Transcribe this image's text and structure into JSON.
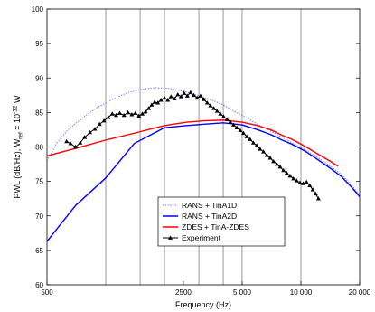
{
  "chart_data": {
    "type": "line",
    "xlabel": "Frequency (Hz)",
    "ylabel_parts": {
      "base": "PWL (dB/Hz), W",
      "sub": "ref",
      "mid": " = 10",
      "sup": "-12",
      "end": " W"
    },
    "x_scale": "log",
    "xlim": [
      500,
      20000
    ],
    "ylim": [
      60,
      100
    ],
    "grid": "vertical lines only",
    "y_ticks": [
      {
        "value": 60,
        "label": "60"
      },
      {
        "value": 65,
        "label": "65"
      },
      {
        "value": 70,
        "label": "70"
      },
      {
        "value": 75,
        "label": "75"
      },
      {
        "value": 80,
        "label": "80"
      },
      {
        "value": 85,
        "label": "85"
      },
      {
        "value": 90,
        "label": "90"
      },
      {
        "value": 95,
        "label": "95"
      },
      {
        "value": 100,
        "label": "100"
      }
    ],
    "x_ticks": [
      {
        "value": 500,
        "label": "500"
      },
      {
        "value": 2500,
        "label": "2500"
      },
      {
        "value": 5000,
        "label": "5 000"
      },
      {
        "value": 10000,
        "label": "10 000"
      },
      {
        "value": 20000,
        "label": "20 000"
      }
    ],
    "x_gridlines": [
      1000,
      1500,
      2000,
      3000,
      4000,
      5000,
      10000
    ],
    "legend_position": "bottom-center",
    "series": [
      {
        "name": "RANS + TinA1D",
        "color": "#6464ff",
        "style": "dotted",
        "points": [
          [
            500,
            78.0
          ],
          [
            560,
            80.5
          ],
          [
            640,
            82.5
          ],
          [
            760,
            84.2
          ],
          [
            900,
            85.7
          ],
          [
            1100,
            87.0
          ],
          [
            1300,
            87.9
          ],
          [
            1550,
            88.4
          ],
          [
            1800,
            88.6
          ],
          [
            2100,
            88.5
          ],
          [
            2500,
            88.1
          ],
          [
            3000,
            87.4
          ],
          [
            3500,
            86.8
          ],
          [
            4000,
            86.1
          ],
          [
            4600,
            85.1
          ],
          [
            5200,
            84.3
          ],
          [
            6000,
            83.3
          ],
          [
            7000,
            82.3
          ],
          [
            8000,
            81.4
          ],
          [
            9000,
            80.6
          ],
          [
            10500,
            79.6
          ],
          [
            12000,
            78.6
          ],
          [
            14000,
            77.3
          ],
          [
            16000,
            76.1
          ],
          [
            18000,
            74.6
          ],
          [
            20000,
            73.0
          ]
        ]
      },
      {
        "name": "RANS + TinA2D",
        "color": "#0000ff",
        "style": "solid",
        "points": [
          [
            500,
            66.3
          ],
          [
            700,
            71.5
          ],
          [
            1000,
            75.5
          ],
          [
            1400,
            80.5
          ],
          [
            2000,
            82.8
          ],
          [
            2600,
            83.1
          ],
          [
            3200,
            83.3
          ],
          [
            4000,
            83.5
          ],
          [
            5000,
            83.2
          ],
          [
            6000,
            82.5
          ],
          [
            7000,
            81.8
          ],
          [
            8000,
            81.0
          ],
          [
            9000,
            80.4
          ],
          [
            10500,
            79.4
          ],
          [
            12000,
            78.3
          ],
          [
            14000,
            77.0
          ],
          [
            16000,
            75.8
          ],
          [
            18000,
            74.3
          ],
          [
            20000,
            72.8
          ]
        ]
      },
      {
        "name": "ZDES + TinA-ZDES",
        "color": "#ff0000",
        "style": "solid",
        "points": [
          [
            500,
            78.7
          ],
          [
            700,
            79.8
          ],
          [
            1000,
            81.0
          ],
          [
            1400,
            82.0
          ],
          [
            2000,
            83.1
          ],
          [
            2600,
            83.6
          ],
          [
            3200,
            83.8
          ],
          [
            4000,
            83.9
          ],
          [
            5000,
            83.6
          ],
          [
            6000,
            83.1
          ],
          [
            7000,
            82.5
          ],
          [
            8000,
            81.7
          ],
          [
            9000,
            81.1
          ],
          [
            10500,
            80.1
          ],
          [
            12000,
            79.1
          ],
          [
            14000,
            78.0
          ],
          [
            15500,
            77.2
          ]
        ]
      },
      {
        "name": "Experiment",
        "color": "#000000",
        "style": "solid-triangles",
        "points": [
          [
            630,
            80.8
          ],
          [
            660,
            80.5
          ],
          [
            700,
            80.0
          ],
          [
            740,
            80.6
          ],
          [
            780,
            81.4
          ],
          [
            830,
            82.1
          ],
          [
            880,
            82.6
          ],
          [
            930,
            83.3
          ],
          [
            980,
            83.8
          ],
          [
            1030,
            84.3
          ],
          [
            1080,
            84.8
          ],
          [
            1130,
            84.6
          ],
          [
            1180,
            84.9
          ],
          [
            1240,
            84.6
          ],
          [
            1300,
            85.0
          ],
          [
            1360,
            84.7
          ],
          [
            1420,
            84.9
          ],
          [
            1480,
            84.5
          ],
          [
            1540,
            84.8
          ],
          [
            1600,
            85.1
          ],
          [
            1660,
            85.6
          ],
          [
            1720,
            86.1
          ],
          [
            1780,
            86.5
          ],
          [
            1850,
            86.4
          ],
          [
            1920,
            86.8
          ],
          [
            2000,
            87.1
          ],
          [
            2080,
            86.8
          ],
          [
            2160,
            87.3
          ],
          [
            2250,
            87.0
          ],
          [
            2340,
            87.6
          ],
          [
            2430,
            87.3
          ],
          [
            2520,
            87.8
          ],
          [
            2620,
            87.4
          ],
          [
            2720,
            87.9
          ],
          [
            2830,
            87.5
          ],
          [
            2940,
            87.1
          ],
          [
            3060,
            87.4
          ],
          [
            3180,
            86.9
          ],
          [
            3310,
            86.4
          ],
          [
            3440,
            86.0
          ],
          [
            3580,
            85.6
          ],
          [
            3720,
            85.2
          ],
          [
            3870,
            84.8
          ],
          [
            4020,
            84.4
          ],
          [
            4180,
            84.0
          ],
          [
            4350,
            83.6
          ],
          [
            4520,
            83.2
          ],
          [
            4700,
            82.8
          ],
          [
            4890,
            82.4
          ],
          [
            5080,
            82.0
          ],
          [
            5280,
            81.5
          ],
          [
            5490,
            81.1
          ],
          [
            5710,
            80.6
          ],
          [
            5940,
            80.2
          ],
          [
            6180,
            79.7
          ],
          [
            6430,
            79.3
          ],
          [
            6690,
            78.8
          ],
          [
            6960,
            78.4
          ],
          [
            7240,
            77.9
          ],
          [
            7530,
            77.5
          ],
          [
            7830,
            77.1
          ],
          [
            8140,
            76.6
          ],
          [
            8460,
            76.2
          ],
          [
            8800,
            75.8
          ],
          [
            9150,
            75.4
          ],
          [
            9510,
            75.1
          ],
          [
            9890,
            74.8
          ],
          [
            10280,
            74.7
          ],
          [
            10690,
            74.9
          ],
          [
            11100,
            74.4
          ],
          [
            11500,
            73.8
          ],
          [
            11900,
            73.2
          ],
          [
            12300,
            72.5
          ]
        ]
      }
    ]
  }
}
